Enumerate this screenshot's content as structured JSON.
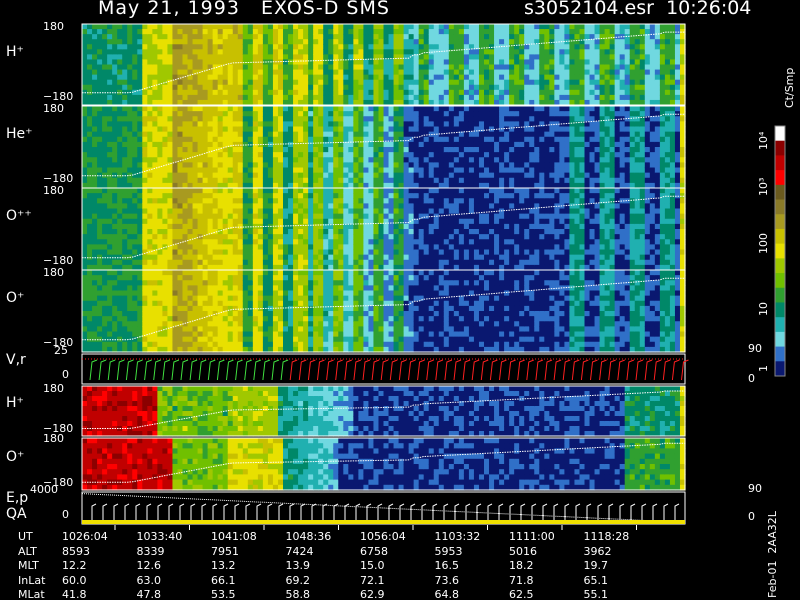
{
  "header": {
    "title": "May 21, 1993   EXOS-D SMS",
    "file": "s3052104.esr",
    "time": "10:26:04"
  },
  "colorbar": {
    "unit": "Ct/Smp",
    "tick_labels": [
      "10⁴",
      "10³",
      "100",
      "10",
      "1"
    ],
    "colors": [
      "#ffffff",
      "#8b0000",
      "#c00000",
      "#ff0000",
      "#6b5a1e",
      "#8a7a28",
      "#a89a20",
      "#c8c000",
      "#e8e000",
      "#a0c800",
      "#70c000",
      "#30a030",
      "#008868",
      "#20b0b0",
      "#70d8e0",
      "#3070c8",
      "#0a1870"
    ]
  },
  "chart_data": [
    {
      "type": "heatmap",
      "panel": "H+ (upper)",
      "label": "H⁺",
      "y_ticks": [
        "180",
        "−180"
      ],
      "ylim": [
        -180,
        180
      ]
    },
    {
      "type": "heatmap",
      "panel": "He+",
      "label": "He⁺",
      "y_ticks": [
        "180",
        "−180"
      ],
      "ylim": [
        -180,
        180
      ]
    },
    {
      "type": "heatmap",
      "panel": "O++",
      "label": "O⁺⁺",
      "y_ticks": [
        "180",
        "−180"
      ],
      "ylim": [
        -180,
        180
      ]
    },
    {
      "type": "heatmap",
      "panel": "O+ (upper)",
      "label": "O⁺",
      "y_ticks": [
        "180",
        "−180"
      ],
      "ylim": [
        -180,
        180
      ]
    },
    {
      "type": "line",
      "panel": "V,r",
      "label": "V,r",
      "y_ticks": [
        "25",
        "0"
      ],
      "right_ticks": [
        "90",
        "0"
      ],
      "ylim": [
        0,
        25
      ]
    },
    {
      "type": "heatmap",
      "panel": "H+ (lower)",
      "label": "H⁺",
      "y_ticks": [
        "180",
        "−180"
      ],
      "ylim": [
        -180,
        180
      ]
    },
    {
      "type": "heatmap",
      "panel": "O+ (lower)",
      "label": "O⁺",
      "y_ticks": [
        "180",
        "−180"
      ],
      "ylim": [
        -180,
        180
      ]
    },
    {
      "type": "line",
      "panel": "E,p QA",
      "label": "E,p",
      "label2": "QA",
      "y_ticks": [
        "4000",
        "0"
      ],
      "right_ticks": [
        "90",
        "0"
      ],
      "ylim": [
        0,
        4000
      ]
    }
  ],
  "table": {
    "row_labels": [
      "UT",
      "ALT",
      "MLT",
      "InLat",
      "MLat"
    ],
    "columns": [
      [
        "1026:04",
        "8593",
        "12.2",
        "60.0",
        "41.8"
      ],
      [
        "1033:40",
        "8339",
        "12.6",
        "63.0",
        "47.8"
      ],
      [
        "1041:08",
        "7951",
        "13.2",
        "66.1",
        "53.5"
      ],
      [
        "1048:36",
        "7424",
        "13.9",
        "69.2",
        "58.8"
      ],
      [
        "1056:04",
        "6758",
        "15.0",
        "72.1",
        "62.9"
      ],
      [
        "1103:32",
        "5953",
        "16.5",
        "73.6",
        "64.8"
      ],
      [
        "1111:00",
        "5016",
        "18.2",
        "71.8",
        "62.5"
      ],
      [
        "1118:28",
        "3962",
        "19.7",
        "65.1",
        "55.1"
      ]
    ]
  },
  "footer": "Feb-01  2AA32L"
}
